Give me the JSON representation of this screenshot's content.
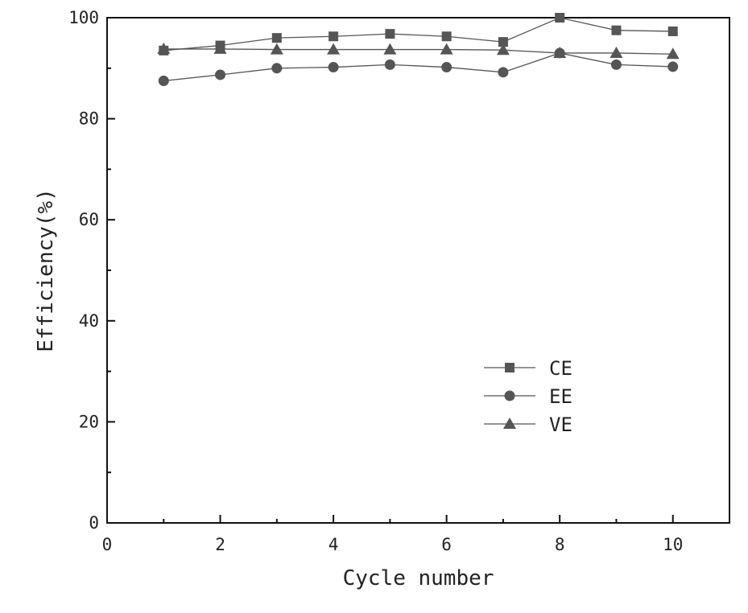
{
  "chart_data": {
    "type": "line",
    "title": "",
    "xlabel": "Cycle number",
    "ylabel": "Efficiency(%)",
    "xlim": [
      0,
      11
    ],
    "ylim": [
      0,
      100
    ],
    "xticks": [
      0,
      2,
      4,
      6,
      8,
      10
    ],
    "yticks": [
      0,
      20,
      40,
      60,
      80,
      100
    ],
    "x": [
      1,
      2,
      3,
      4,
      5,
      6,
      7,
      8,
      9,
      10
    ],
    "series": [
      {
        "name": "CE",
        "marker": "square",
        "color": "#555555",
        "values": [
          93.5,
          94.5,
          96.0,
          96.3,
          96.8,
          96.3,
          95.2,
          100.0,
          97.5,
          97.3
        ]
      },
      {
        "name": "EE",
        "marker": "circle",
        "color": "#555555",
        "values": [
          87.5,
          88.7,
          90.0,
          90.2,
          90.7,
          90.2,
          89.2,
          93.0,
          90.7,
          90.3
        ]
      },
      {
        "name": "VE",
        "marker": "triangle",
        "color": "#555555",
        "values": [
          93.8,
          93.8,
          93.7,
          93.7,
          93.7,
          93.7,
          93.6,
          93.0,
          93.0,
          92.8
        ]
      }
    ],
    "legend_position": "center-right",
    "grid": false
  }
}
